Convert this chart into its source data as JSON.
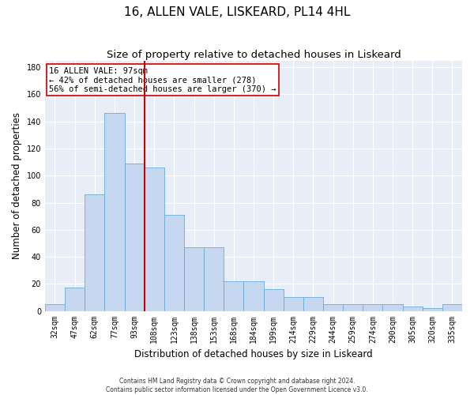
{
  "title1": "16, ALLEN VALE, LISKEARD, PL14 4HL",
  "title2": "Size of property relative to detached houses in Liskeard",
  "xlabel": "Distribution of detached houses by size in Liskeard",
  "ylabel": "Number of detached properties",
  "bins": [
    "32sqm",
    "47sqm",
    "62sqm",
    "77sqm",
    "93sqm",
    "108sqm",
    "123sqm",
    "138sqm",
    "153sqm",
    "168sqm",
    "184sqm",
    "199sqm",
    "214sqm",
    "229sqm",
    "244sqm",
    "259sqm",
    "274sqm",
    "290sqm",
    "305sqm",
    "320sqm",
    "335sqm"
  ],
  "values": [
    5,
    17,
    86,
    146,
    109,
    106,
    71,
    47,
    47,
    22,
    22,
    16,
    10,
    10,
    5,
    5,
    5,
    5,
    3,
    2,
    5
  ],
  "bar_color": "#c5d8f0",
  "bar_edge_color": "#6aaad4",
  "vline_x": 4.5,
  "vline_color": "#cc0000",
  "annotation_text": "16 ALLEN VALE: 97sqm\n← 42% of detached houses are smaller (278)\n56% of semi-detached houses are larger (370) →",
  "annotation_box_color": "#ffffff",
  "annotation_box_edge": "#cc0000",
  "ylim": [
    0,
    185
  ],
  "yticks": [
    0,
    20,
    40,
    60,
    80,
    100,
    120,
    140,
    160,
    180
  ],
  "footer1": "Contains HM Land Registry data © Crown copyright and database right 2024.",
  "footer2": "Contains public sector information licensed under the Open Government Licence v3.0.",
  "bg_color": "#e8eef8",
  "grid_color": "#ffffff",
  "title1_fontsize": 11,
  "title2_fontsize": 9.5,
  "tick_fontsize": 7,
  "ylabel_fontsize": 8.5,
  "xlabel_fontsize": 8.5,
  "annotation_fontsize": 7.5,
  "footer_fontsize": 5.5
}
